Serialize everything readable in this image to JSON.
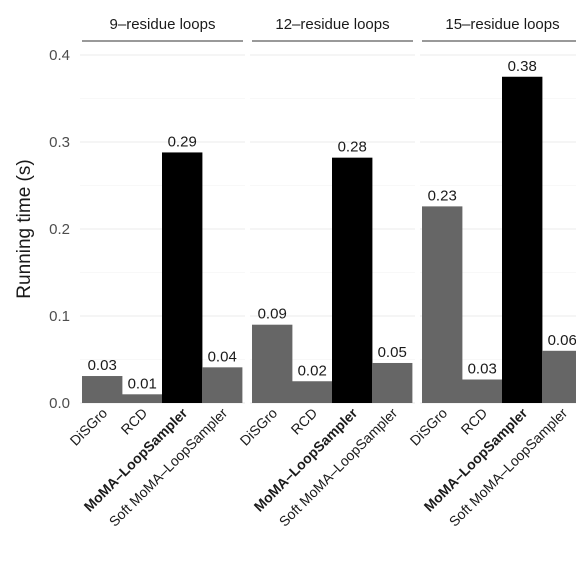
{
  "chart_data": {
    "type": "bar",
    "ylabel": "Running time (s)",
    "ylim": [
      0,
      0.42
    ],
    "yticks": [
      "0.0",
      "0.1",
      "0.2",
      "0.3",
      "0.4"
    ],
    "ytick_values": [
      0,
      0.1,
      0.2,
      0.3,
      0.4
    ],
    "grid": true,
    "categories": [
      "DiSGro",
      "RCD",
      "MoMA–LoopSampler",
      "Soft MoMA–LoopSampler"
    ],
    "highlight_category": "MoMA–LoopSampler",
    "colors": {
      "default": "#666666",
      "highlight": "#000000"
    },
    "panels": [
      {
        "title": "9–residue loops",
        "values": [
          0.031,
          0.01,
          0.288,
          0.041
        ],
        "labels": [
          "0.03",
          "0.01",
          "0.29",
          "0.04"
        ]
      },
      {
        "title": "12–residue loops",
        "values": [
          0.09,
          0.025,
          0.282,
          0.046
        ],
        "labels": [
          "0.09",
          "0.02",
          "0.28",
          "0.05"
        ]
      },
      {
        "title": "15–residue loops",
        "values": [
          0.226,
          0.027,
          0.375,
          0.06
        ],
        "labels": [
          "0.23",
          "0.03",
          "0.38",
          "0.06"
        ]
      }
    ]
  }
}
